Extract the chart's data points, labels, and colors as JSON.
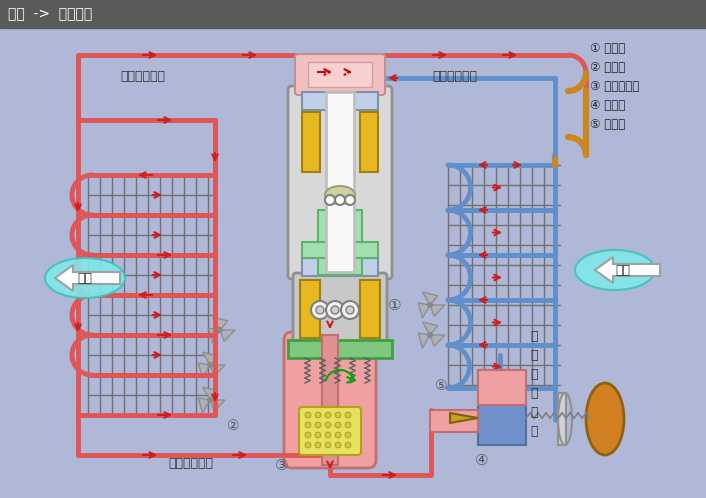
{
  "title": "原理  ->  制冷原理",
  "title_bg": "#5a5a5a",
  "title_color": "#ffffff",
  "bg_color": "#b0b8d8",
  "legend_items": [
    "① 压缩机",
    "② 冷凝器",
    "③ 储液干燥器",
    "④ 膨胀阀",
    "⑤ 蔓发器"
  ],
  "labels": {
    "high_temp_gas": "高温高压气态",
    "low_temp_gas": "低温低压气态",
    "mid_temp_liquid": "中温高压液态",
    "low_temp_liquid": [
      "低",
      "温",
      "低",
      "压",
      "液",
      "态"
    ],
    "heat_release": "散热",
    "heat_absorb": "吸热",
    "num1": "①",
    "num2": "②",
    "num3": "③",
    "num4": "④",
    "num5": "⑤"
  },
  "hot": "#e05555",
  "cold": "#6090cc",
  "orange": "#cc8820",
  "pink_fill": "#f0a0a0",
  "lw_pipe": 3.5
}
